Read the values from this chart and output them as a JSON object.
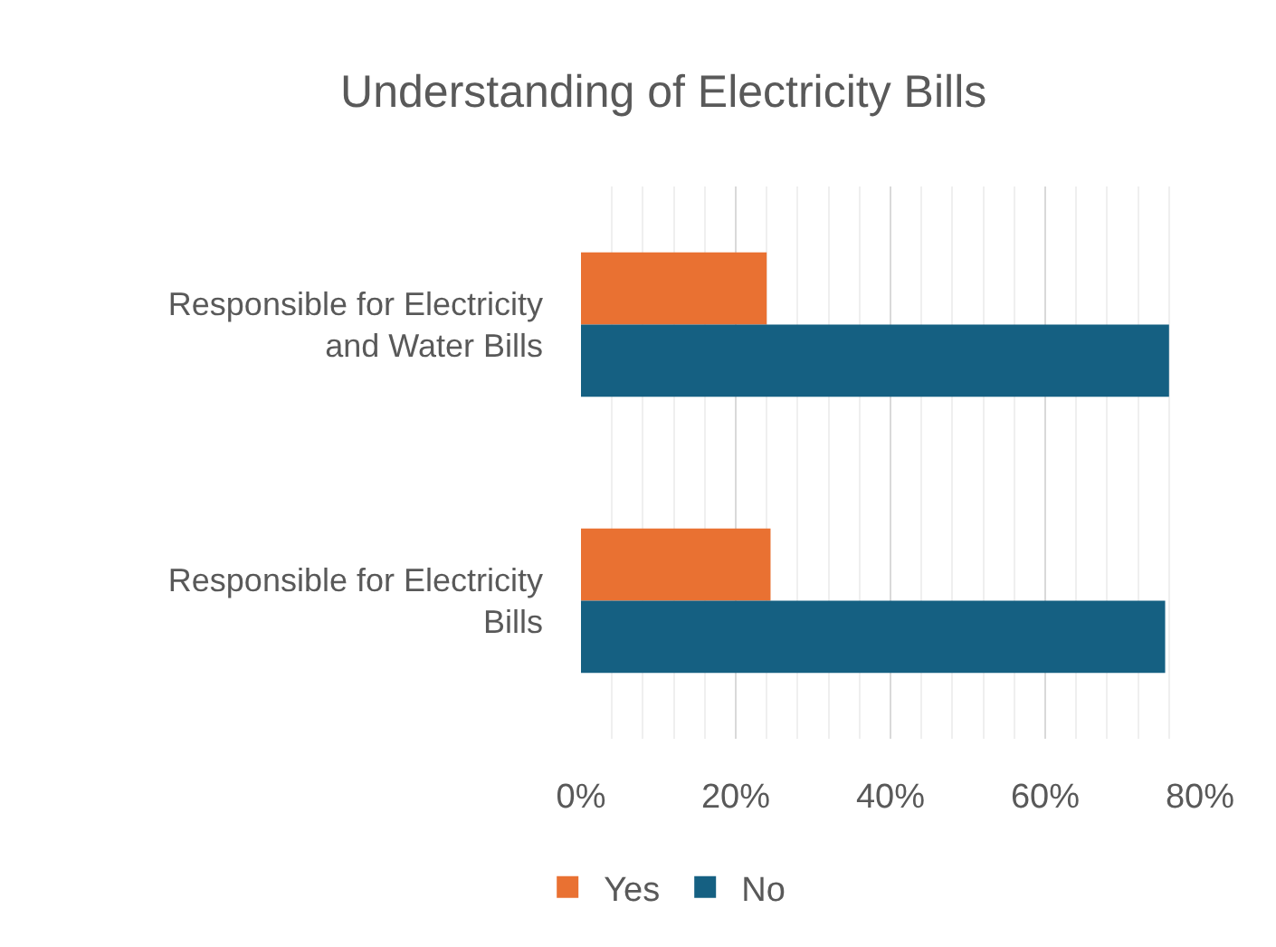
{
  "chart_data": {
    "type": "bar",
    "orientation": "horizontal",
    "title": "Understanding of Electricity Bills",
    "categories": [
      "Responsible for Electricity and Water Bills",
      "Responsible for Electricity Bills"
    ],
    "series": [
      {
        "name": "Yes",
        "color": "#e97132",
        "values": [
          24,
          24.5
        ]
      },
      {
        "name": "No",
        "color": "#156082",
        "values": [
          76,
          75.5
        ]
      }
    ],
    "xlim": [
      0,
      80
    ],
    "xticks": [
      {
        "value": 0,
        "label": "0%"
      },
      {
        "value": 4,
        "label": null
      },
      {
        "value": 8,
        "label": null
      },
      {
        "value": 12,
        "label": null
      },
      {
        "value": 16,
        "label": null
      },
      {
        "value": 20,
        "label": "20%"
      },
      {
        "value": 24,
        "label": null
      },
      {
        "value": 28,
        "label": null
      },
      {
        "value": 32,
        "label": null
      },
      {
        "value": 36,
        "label": null
      },
      {
        "value": 40,
        "label": "40%"
      },
      {
        "value": 44,
        "label": null
      },
      {
        "value": 48,
        "label": null
      },
      {
        "value": 52,
        "label": null
      },
      {
        "value": 56,
        "label": null
      },
      {
        "value": 60,
        "label": "60%"
      },
      {
        "value": 64,
        "label": null
      },
      {
        "value": 68,
        "label": null
      },
      {
        "value": 72,
        "label": null
      },
      {
        "value": 76,
        "label": null
      },
      {
        "value": 80,
        "label": "80%"
      }
    ],
    "grid": "x",
    "legend": "bottom"
  }
}
